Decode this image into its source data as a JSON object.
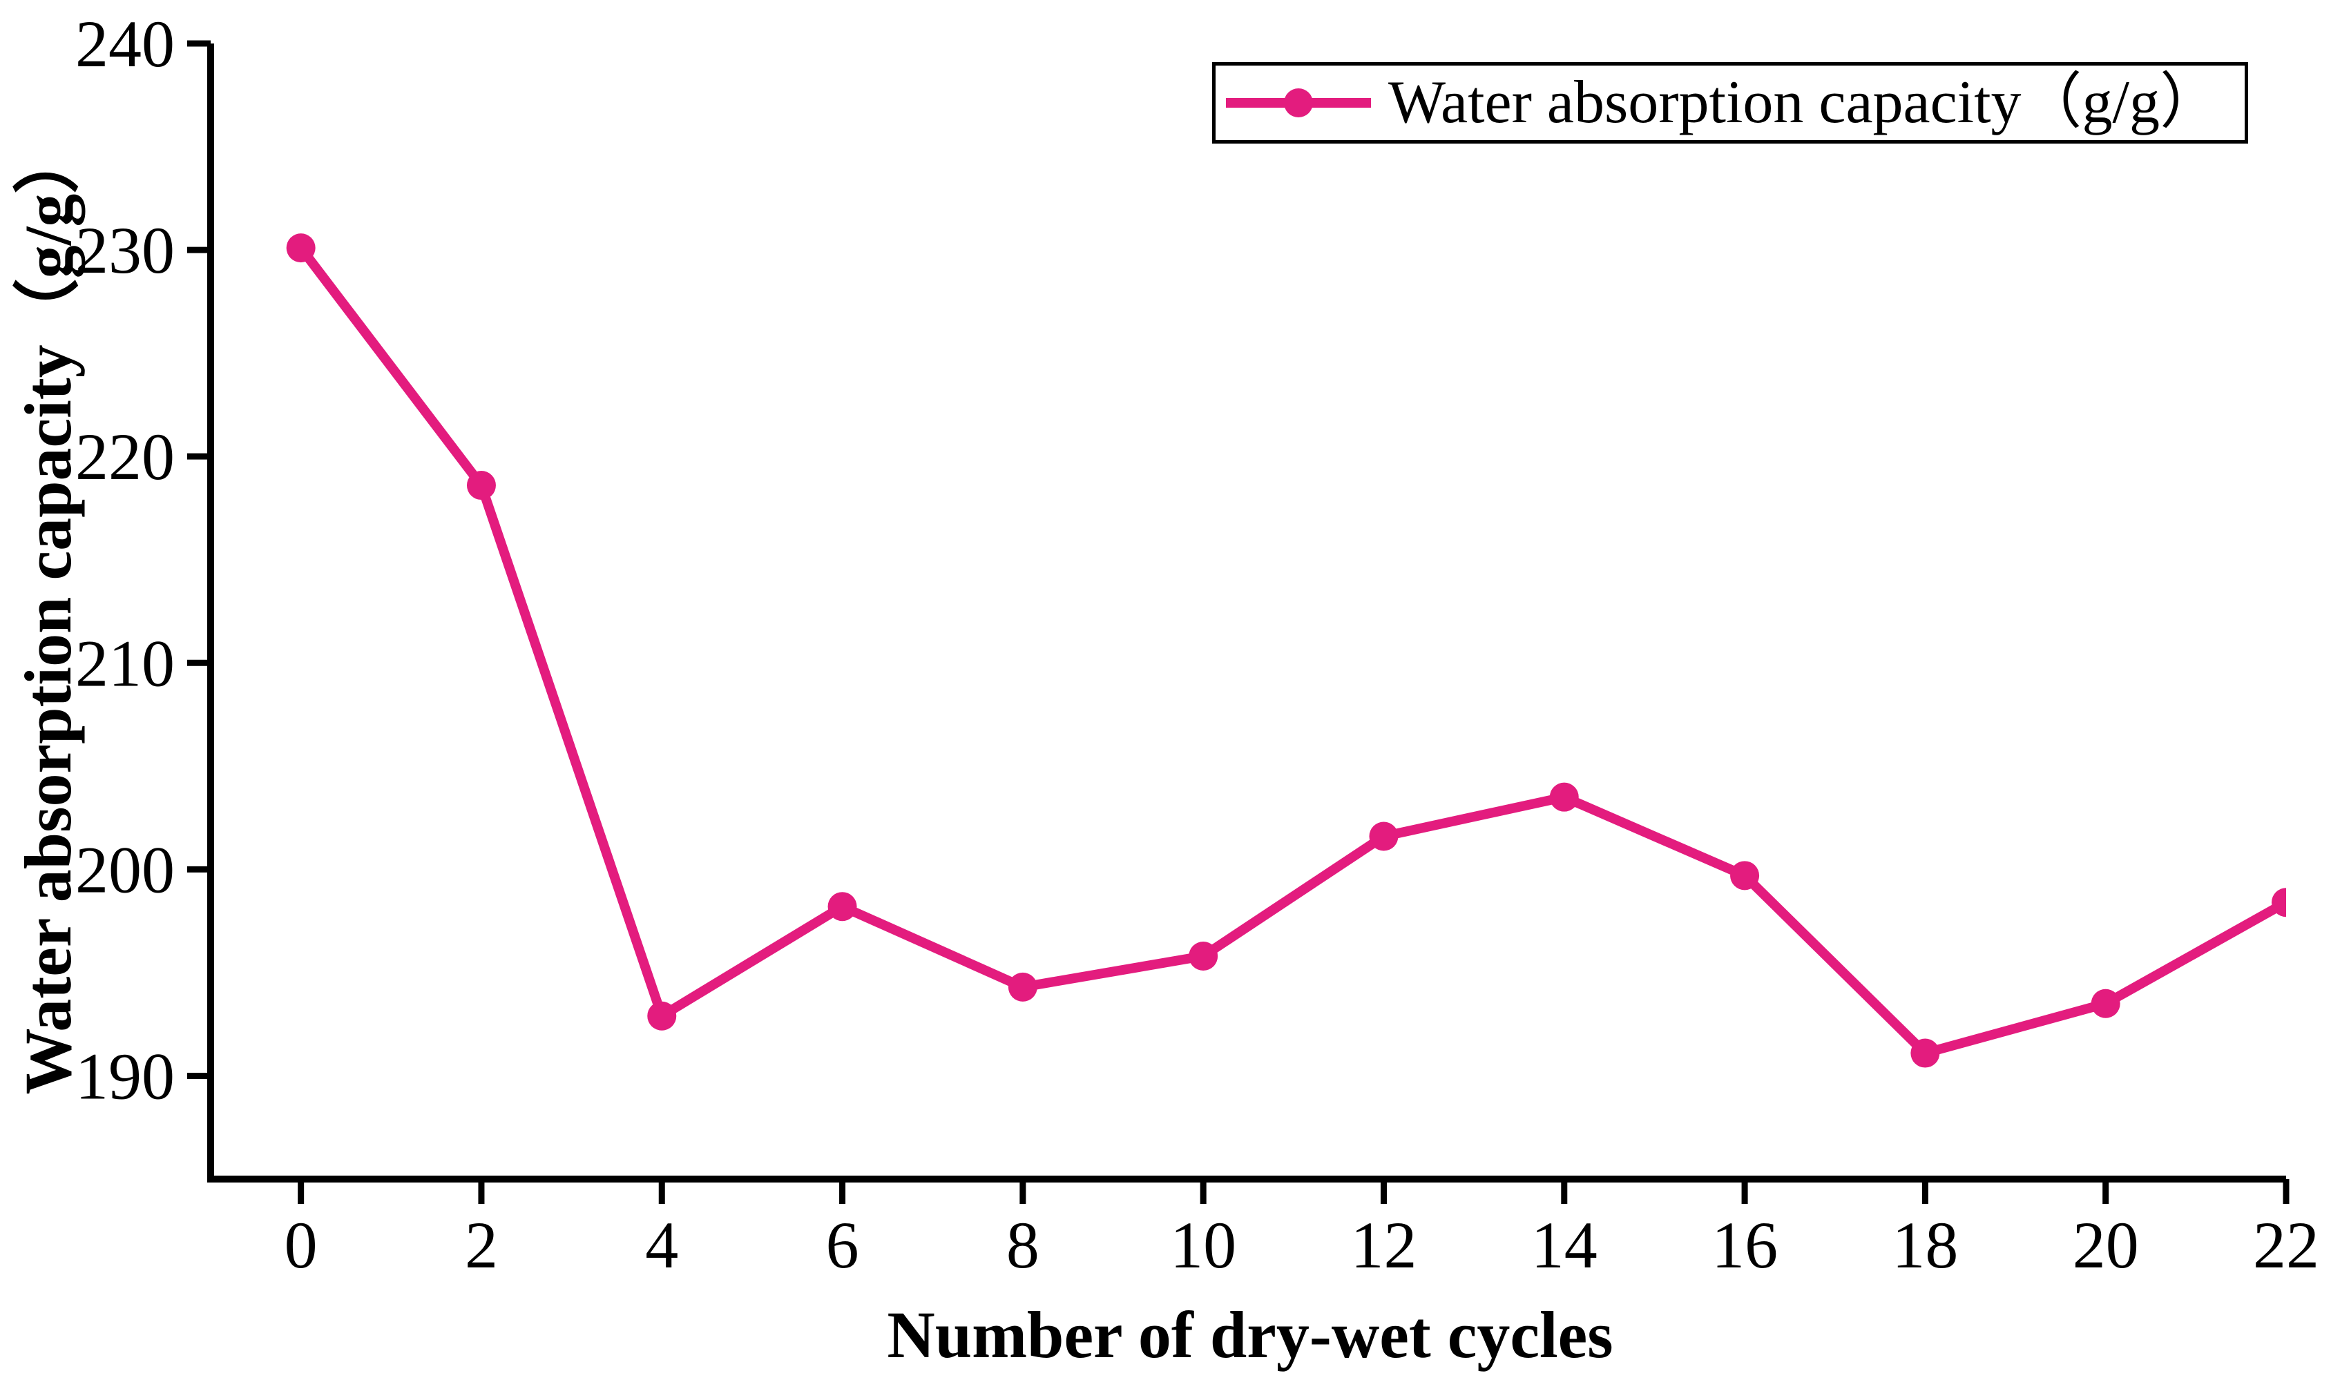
{
  "chart_data": {
    "type": "line",
    "title": "",
    "xlabel": "Number of dry-wet cycles",
    "ylabel": "Water absorption capacity（g/g）",
    "x_ticks": [
      0,
      2,
      4,
      6,
      8,
      10,
      12,
      14,
      16,
      18,
      20,
      22
    ],
    "y_ticks": [
      240,
      230,
      220,
      210,
      200,
      190
    ],
    "xlim": [
      -1,
      22
    ],
    "ylim": [
      185,
      240
    ],
    "grid": false,
    "legend_position": "top-right",
    "series": [
      {
        "name": "Water absorption capacity（g/g）",
        "x": [
          0,
          2,
          4,
          6,
          8,
          10,
          12,
          14,
          16,
          18,
          20,
          22
        ],
        "values": [
          230.1,
          218.6,
          192.9,
          198.2,
          194.3,
          195.8,
          201.6,
          203.5,
          199.7,
          191.1,
          193.5,
          198.4
        ],
        "color": "#E31C7E",
        "marker": "circle"
      }
    ],
    "axis_color": "#000000"
  },
  "legend": {
    "label": "Water absorption capacity（g/g）"
  },
  "axes": {
    "x_label": "Number of dry-wet cycles",
    "y_label": "Water absorption capacity（g/g）"
  }
}
